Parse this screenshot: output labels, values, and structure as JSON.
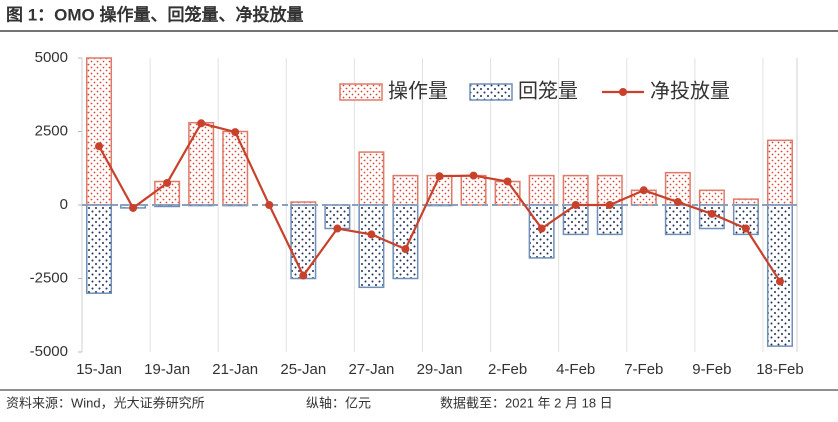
{
  "chart_data": {
    "type": "bar-line",
    "title": "图 1：OMO 操作量、回笼量、净投放量",
    "source": "资料来源：Wind，光大证券研究所",
    "unit_note": "纵轴：亿元",
    "date_note": "数据截至：2021 年 2 月 18 日",
    "categories": [
      "15-Jan",
      null,
      "19-Jan",
      null,
      "21-Jan",
      null,
      "25-Jan",
      null,
      "27-Jan",
      null,
      "29-Jan",
      null,
      "2-Feb",
      null,
      "4-Feb",
      null,
      "7-Feb",
      null,
      "9-Feb",
      null,
      "18-Feb"
    ],
    "series": [
      {
        "name": "操作量",
        "type": "bar",
        "color": "#e07a68",
        "values": [
          5000,
          0,
          800,
          2800,
          2500,
          0,
          100,
          0,
          1800,
          1000,
          1000,
          1000,
          800,
          1000,
          1000,
          1000,
          500,
          1100,
          500,
          200,
          2200
        ]
      },
      {
        "name": "回笼量",
        "type": "bar",
        "color": "#6f8fb8",
        "values": [
          -3000,
          -100,
          -50,
          -20,
          -20,
          0,
          -2500,
          -800,
          -2800,
          -2500,
          -20,
          0,
          0,
          -1800,
          -1000,
          -1000,
          0,
          -1000,
          -800,
          -1000,
          -4800
        ]
      },
      {
        "name": "净投放量",
        "type": "line",
        "color": "#c8412b",
        "values": [
          2000,
          -100,
          750,
          2780,
          2480,
          0,
          -2400,
          -800,
          -1000,
          -1500,
          980,
          1000,
          800,
          -800,
          0,
          0,
          500,
          100,
          -300,
          -800,
          -2600
        ]
      }
    ],
    "ylim": [
      -5000,
      5000
    ],
    "yticks": [
      -5000,
      -2500,
      0,
      2500,
      5000
    ]
  }
}
